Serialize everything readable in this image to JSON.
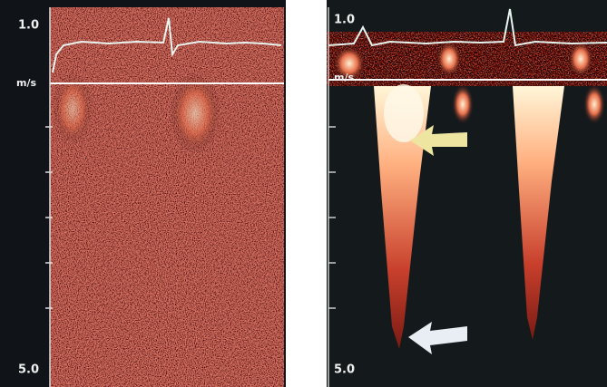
{
  "panels": [
    {
      "scale_top": "1.0",
      "unit": "m/s",
      "scale_bottom": "5.0"
    },
    {
      "scale_top": "1.0",
      "unit": "m/s",
      "scale_bottom": "5.0"
    }
  ]
}
